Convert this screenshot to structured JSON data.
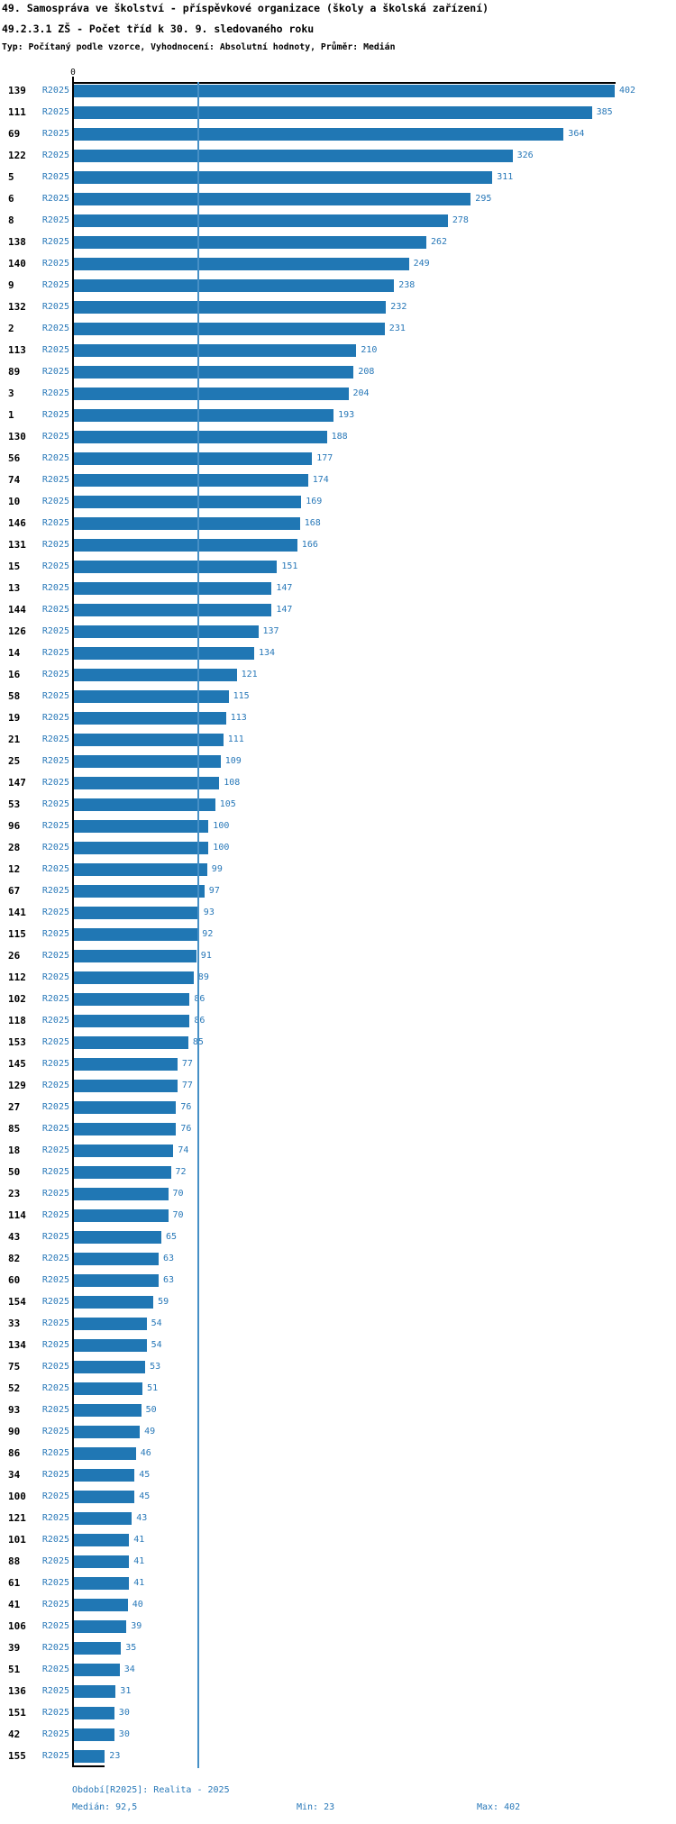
{
  "chart_data": {
    "type": "bar",
    "orientation": "horizontal",
    "title": "49. Samospráva ve školství - příspěvkové organizace (školy a školská zařízení)",
    "subtitle": "49.2.3.1 ZŠ - Počet tříd k 30. 9. sledovaného roku",
    "meta": "Typ: Počítaný podle vzorce, Vyhodnocení: Absolutní hodnoty, Průměr: Medián",
    "series_label": "R2025",
    "categories": [
      "139",
      "111",
      "69",
      "122",
      "5",
      "6",
      "8",
      "138",
      "140",
      "9",
      "132",
      "2",
      "113",
      "89",
      "3",
      "1",
      "130",
      "56",
      "74",
      "10",
      "146",
      "131",
      "15",
      "13",
      "144",
      "126",
      "14",
      "16",
      "58",
      "19",
      "21",
      "25",
      "147",
      "53",
      "96",
      "28",
      "12",
      "67",
      "141",
      "115",
      "26",
      "112",
      "102",
      "118",
      "153",
      "145",
      "129",
      "27",
      "85",
      "18",
      "50",
      "23",
      "114",
      "43",
      "82",
      "60",
      "154",
      "33",
      "134",
      "75",
      "52",
      "93",
      "90",
      "86",
      "34",
      "100",
      "121",
      "101",
      "88",
      "61",
      "41",
      "106",
      "39",
      "51",
      "136",
      "151",
      "42",
      "155"
    ],
    "values": [
      402,
      385,
      364,
      326,
      311,
      295,
      278,
      262,
      249,
      238,
      232,
      231,
      210,
      208,
      204,
      193,
      188,
      177,
      174,
      169,
      168,
      166,
      151,
      147,
      147,
      137,
      134,
      121,
      115,
      113,
      111,
      109,
      108,
      105,
      100,
      100,
      99,
      97,
      93,
      92,
      91,
      89,
      86,
      86,
      85,
      77,
      77,
      76,
      76,
      74,
      72,
      70,
      70,
      65,
      63,
      63,
      59,
      54,
      54,
      53,
      51,
      50,
      49,
      46,
      45,
      45,
      43,
      41,
      41,
      41,
      40,
      39,
      35,
      34,
      31,
      30,
      30,
      23
    ],
    "xlim": [
      0,
      402
    ],
    "x_axis_ticks": [
      "0"
    ],
    "median": 92.5,
    "min": 23,
    "max": 402,
    "grid": false,
    "legend_position": "none"
  },
  "axis": {
    "zero_label": "0"
  },
  "footer": {
    "period_line": "Období[R2025]: Realita - 2025",
    "median_label": "Medián: 92,5",
    "min_label": "Min: 23",
    "max_label": "Max: 402"
  },
  "colors": {
    "bar": "#2077b4",
    "text_blue": "#2878b8",
    "median_line": "#4690c6",
    "axis": "#000000"
  }
}
